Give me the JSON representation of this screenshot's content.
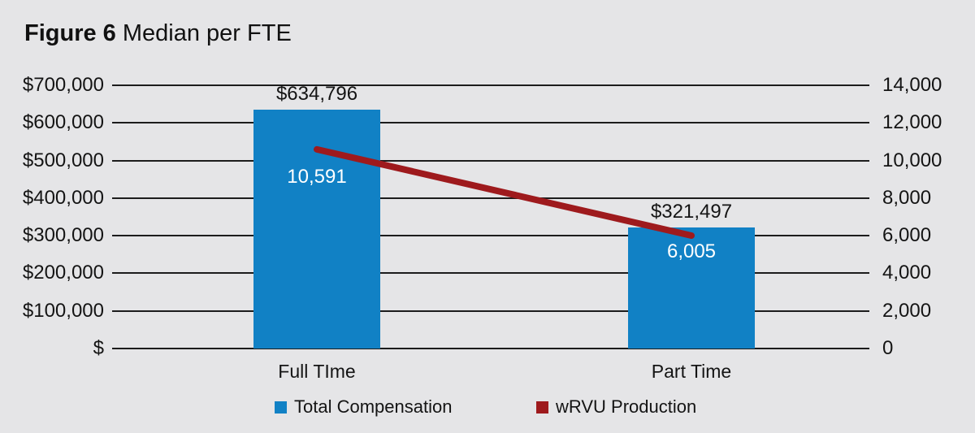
{
  "title": {
    "prefix": "Figure 6",
    "suffix": " Median per FTE"
  },
  "chart_data": {
    "type": "bar",
    "title": "Figure 6 Median per FTE",
    "categories": [
      "Full TIme",
      "Part Time"
    ],
    "series": [
      {
        "name": "Total Compensation",
        "type": "bar",
        "axis": "left",
        "values": [
          634796,
          321497
        ],
        "labels": [
          "$634,796",
          "$321,497"
        ],
        "color": "#1181c5"
      },
      {
        "name": "wRVU Production",
        "type": "line",
        "axis": "right",
        "values": [
          10591,
          6005
        ],
        "labels": [
          "10,591",
          "6,005"
        ],
        "color": "#9e1a1d"
      }
    ],
    "left_axis": {
      "min": 0,
      "max": 700000,
      "ticks": [
        "$700,000",
        "$600,000",
        "$500,000",
        "$400,000",
        "$300,000",
        "$200,000",
        "$100,000",
        "$"
      ]
    },
    "right_axis": {
      "min": 0,
      "max": 14000,
      "ticks": [
        "14,000",
        "12,000",
        "10,000",
        "8,000",
        "6,000",
        "4,000",
        "2,000",
        "0"
      ]
    },
    "grid": true,
    "legend_position": "bottom"
  },
  "legend": [
    {
      "label": "Total Compensation",
      "color": "#1181c5"
    },
    {
      "label": "wRVU Production",
      "color": "#9e1a1d"
    }
  ],
  "colors": {
    "background": "#e5e5e7",
    "gridline": "#1c1c1c",
    "bar_blue": "#1181c5",
    "line_red": "#9e1a1d",
    "text": "#141414",
    "bar_inner_text": "#ffffff"
  }
}
